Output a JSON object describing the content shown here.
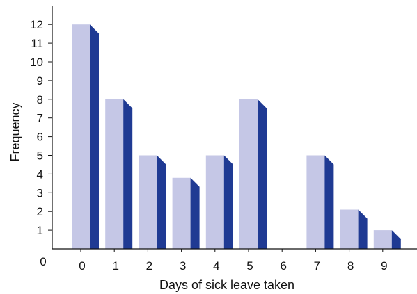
{
  "chart_data": {
    "type": "bar",
    "title": "",
    "xlabel": "Days of sick leave taken",
    "ylabel": "Frequency",
    "origin_label": "0",
    "categories": [
      "0",
      "1",
      "2",
      "3",
      "4",
      "5",
      "6",
      "7",
      "8",
      "9"
    ],
    "values": [
      12,
      8,
      5,
      3.8,
      5,
      8,
      0,
      5,
      2.1,
      1
    ],
    "yticks": [
      "1",
      "2",
      "3",
      "4",
      "5",
      "6",
      "7",
      "8",
      "9",
      "10",
      "11",
      "12"
    ],
    "ylim": [
      0,
      13
    ],
    "grid": false,
    "legend": "none",
    "colors": {
      "front": "#c5c7e6",
      "side": "#1f3a93",
      "axis": "#111111"
    }
  }
}
